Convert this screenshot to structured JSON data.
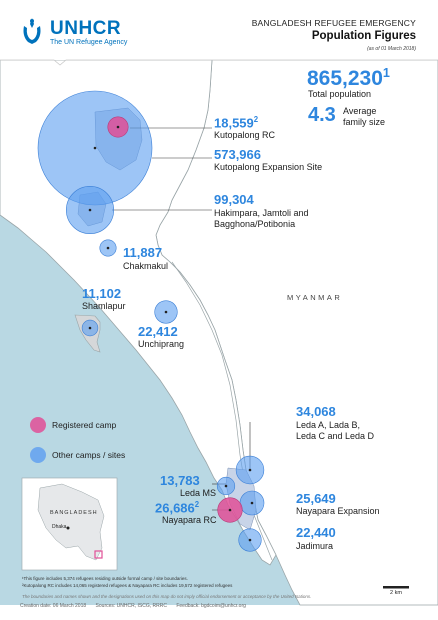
{
  "header": {
    "org_name": "UNHCR",
    "org_tagline": "The UN Refugee Agency",
    "title": "BANGLADESH REFUGEE EMERGENCY",
    "subtitle": "Population Figures",
    "as_of": "(as of 01 March 2018)"
  },
  "summary": {
    "total_population": "865,230",
    "total_note": "1",
    "total_label": "Total population",
    "family_size": "4.3",
    "family_size_label_1": "Average",
    "family_size_label_2": "family size"
  },
  "sites": [
    {
      "name": "Kutopalong RC",
      "population": "18,559",
      "population_value": 18559,
      "note": "2",
      "type": "registered"
    },
    {
      "name": "Kutopalong Expansion Site",
      "population": "573,966",
      "population_value": 573966,
      "type": "other"
    },
    {
      "name_line1": "Hakimpara, Jamtoli and",
      "name_line2": "Bagghona/Potibonia",
      "population": "99,304",
      "population_value": 99304,
      "type": "other"
    },
    {
      "name": "Chakmakul",
      "population": "11,887",
      "population_value": 11887,
      "type": "other"
    },
    {
      "name": "Shamlapur",
      "population": "11,102",
      "population_value": 11102,
      "type": "other"
    },
    {
      "name": "Unchiprang",
      "population": "22,412",
      "population_value": 22412,
      "type": "other"
    },
    {
      "name_line1": "Leda A, Lada B,",
      "name_line2": "Leda C and Leda D",
      "population": "34,068",
      "population_value": 34068,
      "type": "other"
    },
    {
      "name": "Leda MS",
      "population": "13,783",
      "population_value": 13783,
      "type": "other"
    },
    {
      "name": "Nayapara RC",
      "population": "26,686",
      "population_value": 26686,
      "note": "2",
      "type": "registered"
    },
    {
      "name": "Nayapara Expansion",
      "population": "25,649",
      "population_value": 25649,
      "type": "other"
    },
    {
      "name": "Jadimura",
      "population": "22,440",
      "population_value": 22440,
      "type": "other"
    }
  ],
  "map_labels": {
    "country_east": "MYANMAR",
    "inset_country": "BANGLADESH",
    "inset_city": "Dhaka",
    "scale": "2 km"
  },
  "legend": {
    "registered": "Registered camp",
    "other": "Other camps / sites"
  },
  "footnotes": {
    "note1": "¹This figure includes 5,374 refugees residing outside formal camp / site boundaries.",
    "note2": "²Kutopalong RC includes 14,065 registered refugees & Nayapara RC includes 19,572 registered refugees",
    "disclaimer": "The boundaries and names shown and the designations used on this map do not imply official endorsement or acceptance by the United Nations.",
    "creation": "Creation date: 06 March 2018",
    "sources": "Sources: UNHCR, ISCG, RRRC",
    "feedback": "Feedback: bgdcoim@unhcr.org"
  },
  "colors": {
    "brand": "#0072bc",
    "site_blue": "#5c9ef0",
    "site_number": "#2e86de",
    "registered_pink": "#e14f97",
    "water": "#b9d8e3",
    "land": "#ffffff",
    "border": "#9aa5a8"
  }
}
